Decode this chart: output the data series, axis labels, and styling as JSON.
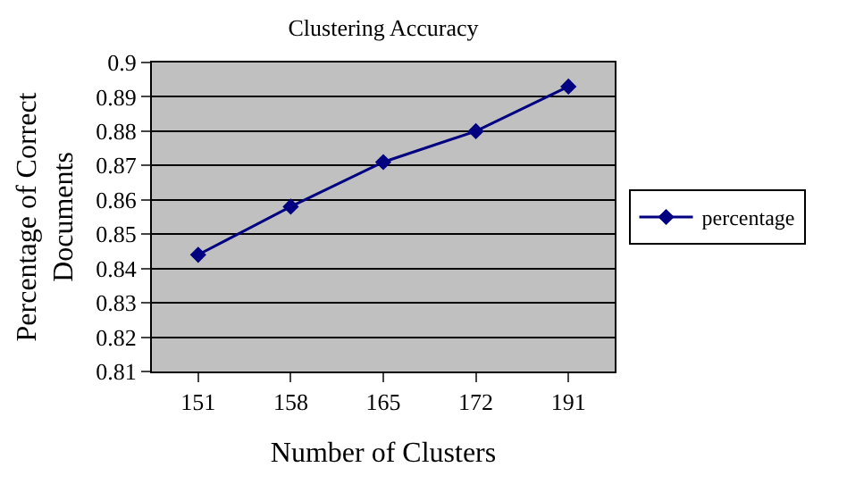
{
  "chart_data": {
    "type": "line",
    "title": "Clustering Accuracy",
    "xlabel": "Number of Clusters",
    "ylabel": "Percentage of Correct Documents",
    "categories": [
      "151",
      "158",
      "165",
      "172",
      "191"
    ],
    "series": [
      {
        "name": "percentage",
        "color": "#000080",
        "values": [
          0.844,
          0.858,
          0.871,
          0.88,
          0.893
        ]
      }
    ],
    "ylim": [
      0.81,
      0.9
    ],
    "yticks": [
      0.81,
      0.82,
      0.83,
      0.84,
      0.85,
      0.86,
      0.87,
      0.88,
      0.89,
      0.9
    ],
    "grid": "y",
    "legend": "right",
    "marker": "diamond",
    "line_style": "solid"
  }
}
